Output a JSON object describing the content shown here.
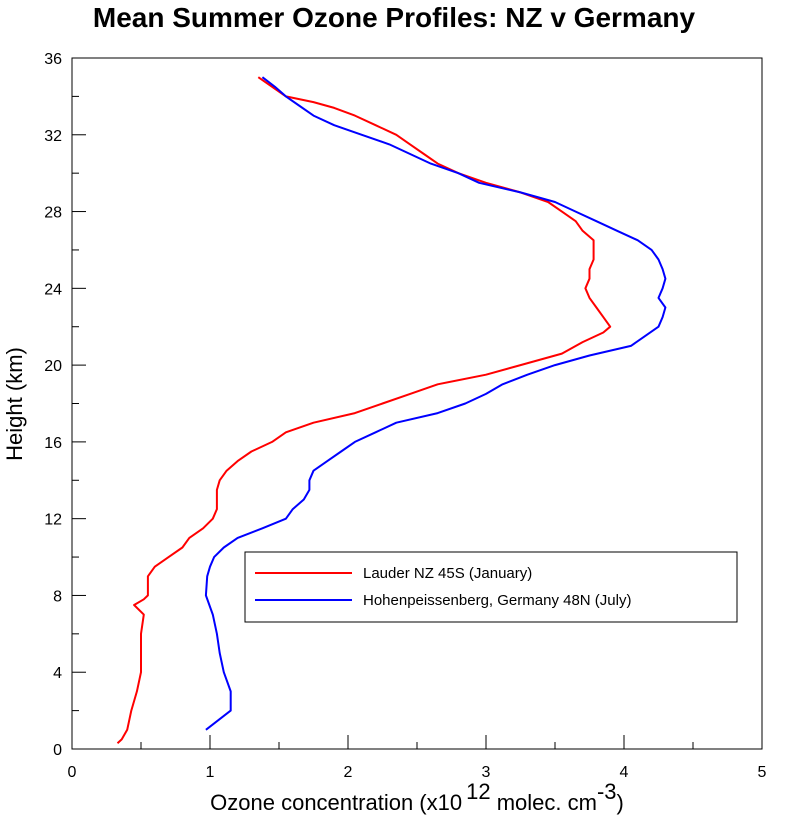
{
  "chart_data": {
    "type": "line",
    "title": "Mean Summer Ozone Profiles: NZ v Germany",
    "xlabel": {
      "prefix": "Ozone concentration (x10",
      "exponent": "12",
      "middle": " molec. cm",
      "unit_exponent": "-3",
      "suffix": ")"
    },
    "ylabel": "Height (km)",
    "xlim": [
      0,
      5
    ],
    "ylim": [
      0,
      36
    ],
    "xticks": [
      0,
      1,
      2,
      3,
      4,
      5
    ],
    "yticks": [
      0,
      4,
      8,
      12,
      16,
      20,
      24,
      28,
      32,
      36
    ],
    "grid": false,
    "legend_position": "right-middle",
    "series": [
      {
        "name": "Lauder NZ 45S (January)",
        "color": "#ff0000",
        "points": [
          [
            0.33,
            0.3
          ],
          [
            0.36,
            0.5
          ],
          [
            0.4,
            1.0
          ],
          [
            0.43,
            2.0
          ],
          [
            0.47,
            3.0
          ],
          [
            0.5,
            4.0
          ],
          [
            0.5,
            5.0
          ],
          [
            0.5,
            6.0
          ],
          [
            0.52,
            7.0
          ],
          [
            0.45,
            7.5
          ],
          [
            0.52,
            7.8
          ],
          [
            0.55,
            8.0
          ],
          [
            0.55,
            9.0
          ],
          [
            0.6,
            9.5
          ],
          [
            0.7,
            10.0
          ],
          [
            0.8,
            10.5
          ],
          [
            0.85,
            11.0
          ],
          [
            0.95,
            11.5
          ],
          [
            1.02,
            12.0
          ],
          [
            1.05,
            12.5
          ],
          [
            1.05,
            13.0
          ],
          [
            1.05,
            13.5
          ],
          [
            1.07,
            14.0
          ],
          [
            1.12,
            14.5
          ],
          [
            1.2,
            15.0
          ],
          [
            1.3,
            15.5
          ],
          [
            1.45,
            16.0
          ],
          [
            1.55,
            16.5
          ],
          [
            1.75,
            17.0
          ],
          [
            2.05,
            17.5
          ],
          [
            2.25,
            18.0
          ],
          [
            2.45,
            18.5
          ],
          [
            2.65,
            19.0
          ],
          [
            3.0,
            19.5
          ],
          [
            3.25,
            20.0
          ],
          [
            3.4,
            20.3
          ],
          [
            3.55,
            20.6
          ],
          [
            3.7,
            21.2
          ],
          [
            3.85,
            21.7
          ],
          [
            3.9,
            22.0
          ],
          [
            3.85,
            22.5
          ],
          [
            3.8,
            23.0
          ],
          [
            3.75,
            23.5
          ],
          [
            3.72,
            24.0
          ],
          [
            3.75,
            24.5
          ],
          [
            3.75,
            25.0
          ],
          [
            3.78,
            25.5
          ],
          [
            3.78,
            26.0
          ],
          [
            3.78,
            26.5
          ],
          [
            3.7,
            27.0
          ],
          [
            3.65,
            27.5
          ],
          [
            3.55,
            28.0
          ],
          [
            3.45,
            28.5
          ],
          [
            3.25,
            29.0
          ],
          [
            3.0,
            29.5
          ],
          [
            2.8,
            30.0
          ],
          [
            2.65,
            30.5
          ],
          [
            2.55,
            31.0
          ],
          [
            2.45,
            31.5
          ],
          [
            2.35,
            32.0
          ],
          [
            2.2,
            32.5
          ],
          [
            2.05,
            33.0
          ],
          [
            1.9,
            33.4
          ],
          [
            1.75,
            33.7
          ],
          [
            1.55,
            34.0
          ],
          [
            1.45,
            34.5
          ],
          [
            1.35,
            35.0
          ]
        ]
      },
      {
        "name": "Hohenpeissenberg, Germany 48N (July)",
        "color": "#0000ff",
        "points": [
          [
            0.97,
            1.0
          ],
          [
            1.15,
            2.0
          ],
          [
            1.15,
            3.0
          ],
          [
            1.1,
            4.0
          ],
          [
            1.07,
            5.0
          ],
          [
            1.05,
            6.0
          ],
          [
            1.02,
            7.0
          ],
          [
            0.97,
            8.0
          ],
          [
            0.98,
            9.0
          ],
          [
            1.0,
            9.5
          ],
          [
            1.03,
            10.0
          ],
          [
            1.1,
            10.5
          ],
          [
            1.2,
            11.0
          ],
          [
            1.38,
            11.5
          ],
          [
            1.55,
            12.0
          ],
          [
            1.6,
            12.5
          ],
          [
            1.68,
            13.0
          ],
          [
            1.72,
            13.5
          ],
          [
            1.72,
            14.0
          ],
          [
            1.75,
            14.5
          ],
          [
            1.85,
            15.0
          ],
          [
            1.95,
            15.5
          ],
          [
            2.05,
            16.0
          ],
          [
            2.2,
            16.5
          ],
          [
            2.35,
            17.0
          ],
          [
            2.65,
            17.5
          ],
          [
            2.85,
            18.0
          ],
          [
            3.0,
            18.5
          ],
          [
            3.12,
            19.0
          ],
          [
            3.3,
            19.5
          ],
          [
            3.5,
            20.0
          ],
          [
            3.75,
            20.5
          ],
          [
            4.05,
            21.0
          ],
          [
            4.15,
            21.5
          ],
          [
            4.25,
            22.0
          ],
          [
            4.28,
            22.5
          ],
          [
            4.3,
            23.0
          ],
          [
            4.25,
            23.5
          ],
          [
            4.28,
            24.0
          ],
          [
            4.3,
            24.5
          ],
          [
            4.28,
            25.0
          ],
          [
            4.25,
            25.5
          ],
          [
            4.2,
            26.0
          ],
          [
            4.1,
            26.5
          ],
          [
            3.95,
            27.0
          ],
          [
            3.8,
            27.5
          ],
          [
            3.65,
            28.0
          ],
          [
            3.5,
            28.5
          ],
          [
            3.25,
            29.0
          ],
          [
            2.95,
            29.5
          ],
          [
            2.8,
            30.0
          ],
          [
            2.6,
            30.5
          ],
          [
            2.45,
            31.0
          ],
          [
            2.3,
            31.5
          ],
          [
            2.1,
            32.0
          ],
          [
            1.9,
            32.5
          ],
          [
            1.75,
            33.0
          ],
          [
            1.65,
            33.5
          ],
          [
            1.55,
            34.0
          ],
          [
            1.47,
            34.5
          ],
          [
            1.38,
            35.0
          ]
        ]
      }
    ]
  }
}
